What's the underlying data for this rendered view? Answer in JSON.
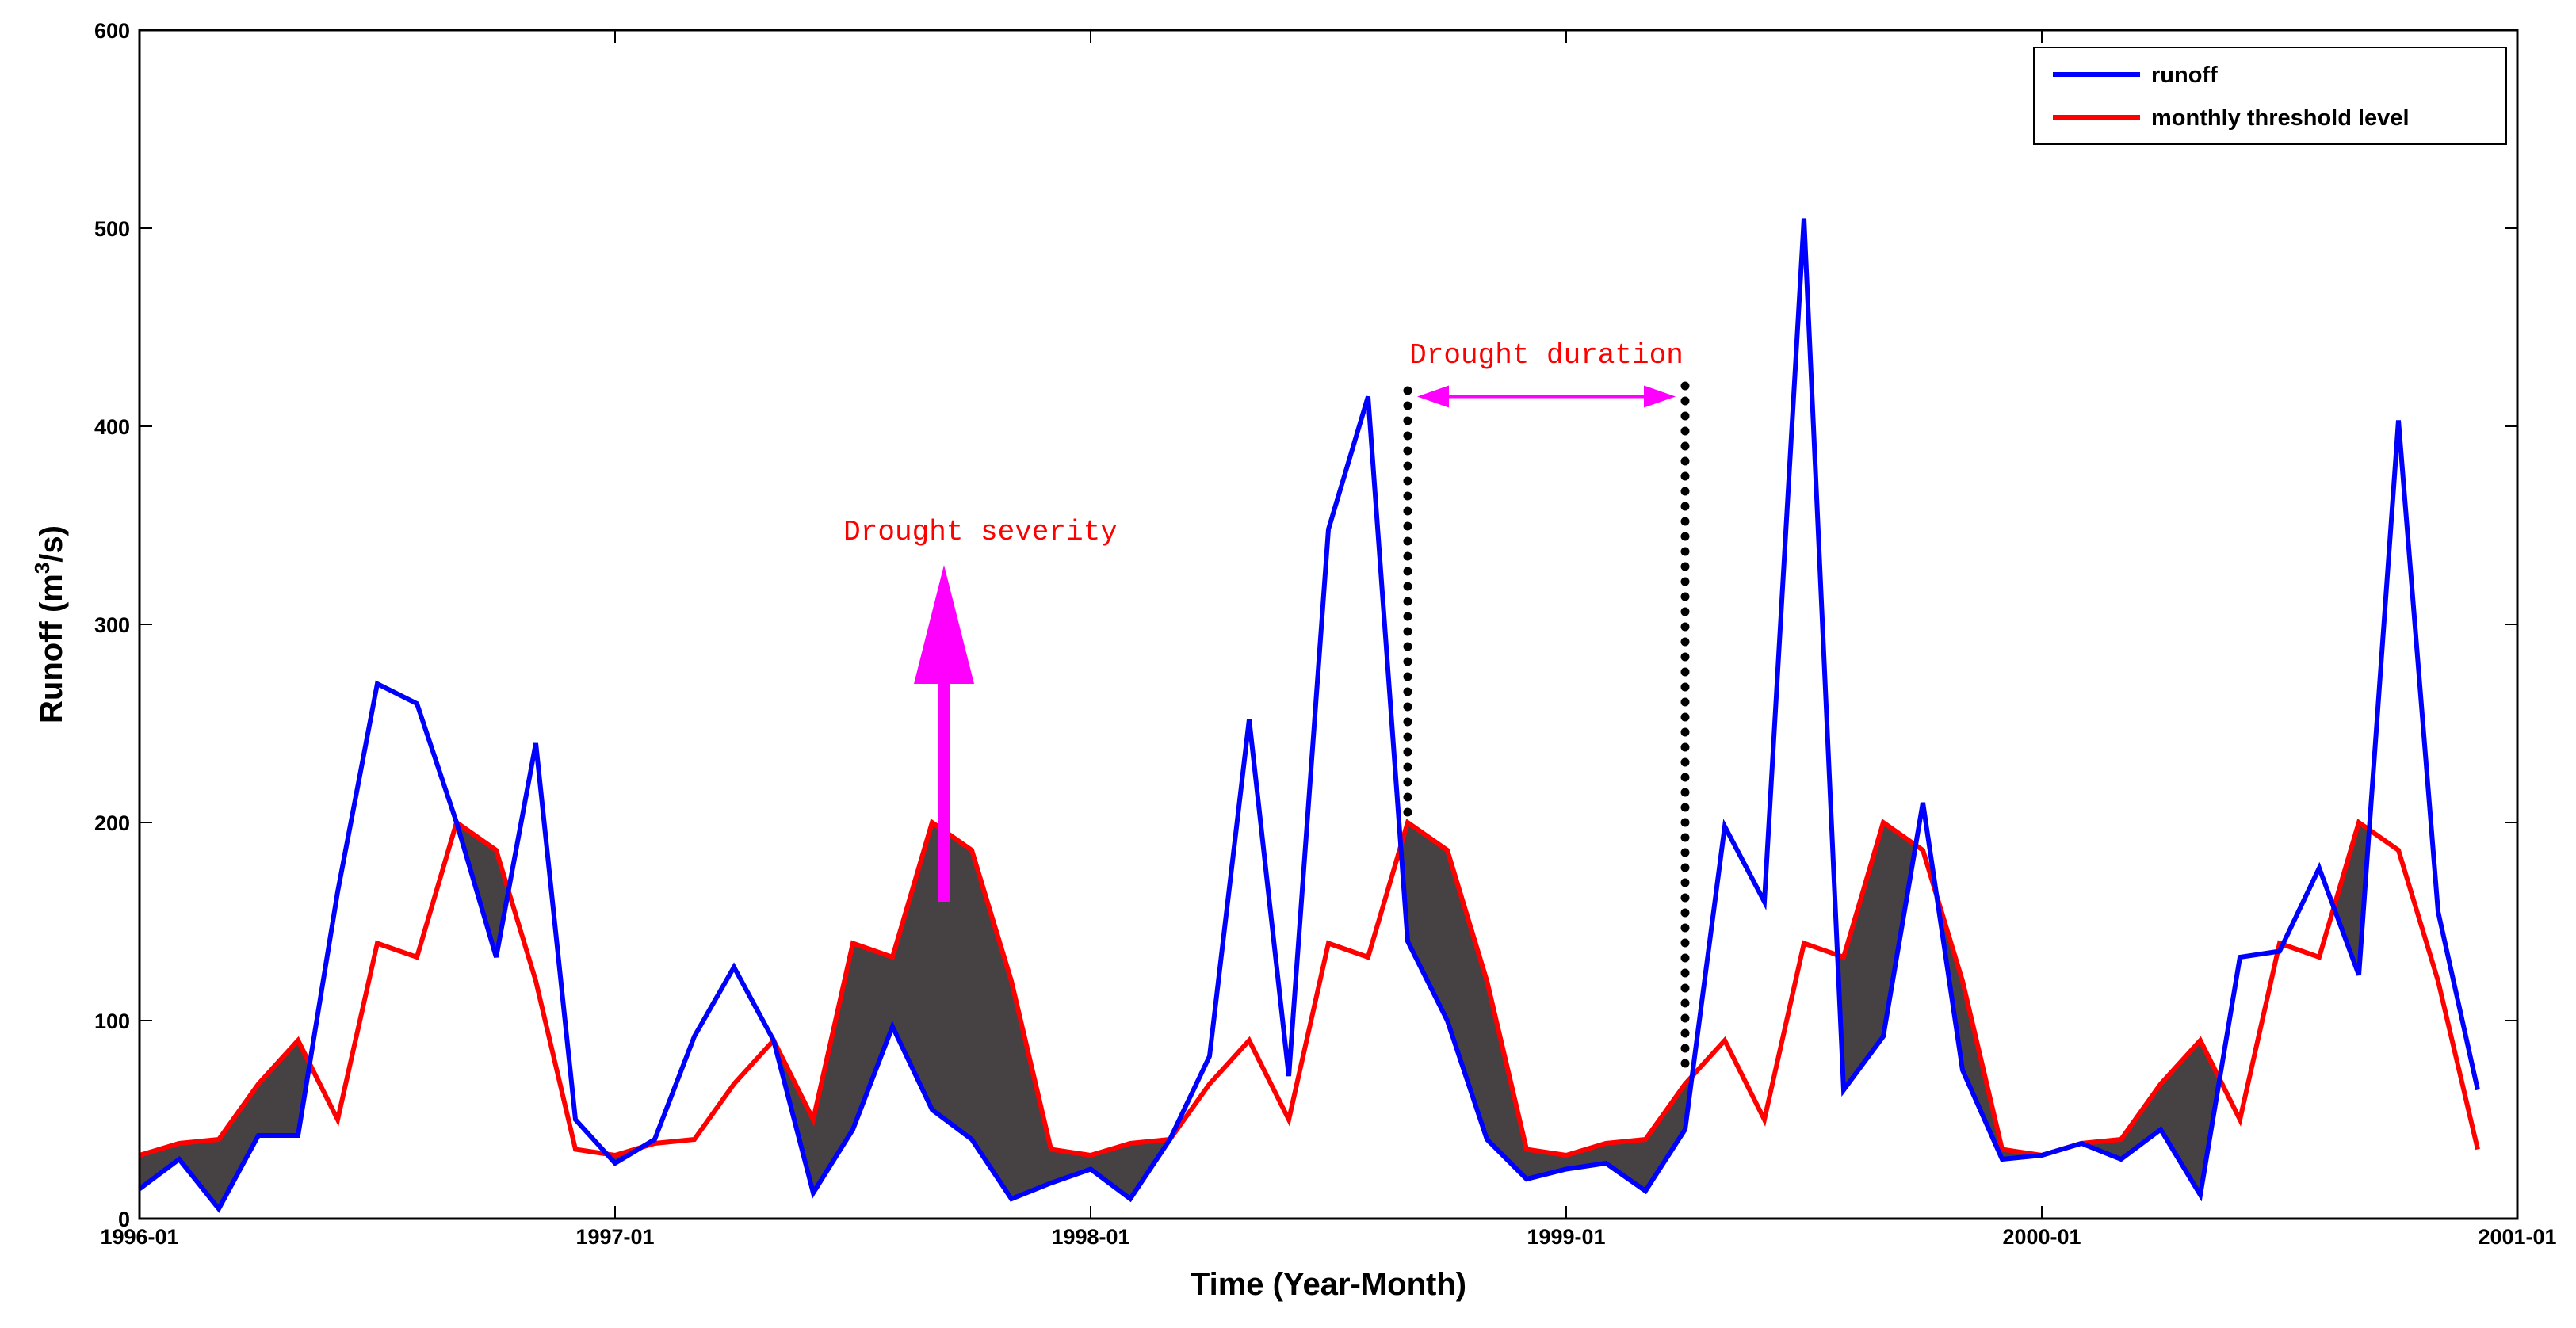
{
  "chart_data": {
    "type": "line",
    "title": "",
    "xlabel": "Time (Year-Month)",
    "ylabel_main": "Runoff (m",
    "ylabel_sup": "3",
    "ylabel_tail": "/s)",
    "ylim": [
      0,
      600
    ],
    "yticks": [
      "0",
      "100",
      "200",
      "300",
      "400",
      "500",
      "600"
    ],
    "xticks": [
      "1996-01",
      "1997-01",
      "1998-01",
      "1999-01",
      "2000-01",
      "2001-01"
    ],
    "xlim_months": [
      0,
      60
    ],
    "series": [
      {
        "name": "runoff",
        "color": "#0000ff",
        "values": [
          15,
          30,
          5,
          42,
          42,
          165,
          270,
          260,
          200,
          132,
          240,
          50,
          28,
          40,
          92,
          127,
          90,
          13,
          45,
          97,
          55,
          40,
          10,
          18,
          25,
          10,
          40,
          82,
          252,
          72,
          348,
          415,
          140,
          100,
          40,
          20,
          25,
          28,
          14,
          45,
          198,
          160,
          505,
          65,
          92,
          210,
          75,
          30,
          32,
          38,
          30,
          45,
          12,
          132,
          135,
          177,
          123,
          403,
          155,
          65
        ]
      },
      {
        "name": "monthly threshold level",
        "color": "#ff0000",
        "values": [
          32,
          38,
          40,
          68,
          90,
          50,
          139,
          132,
          200,
          186,
          120,
          35,
          32,
          38,
          40,
          68,
          90,
          50,
          139,
          132,
          200,
          186,
          120,
          35,
          32,
          38,
          40,
          68,
          90,
          50,
          139,
          132,
          200,
          186,
          120,
          35,
          32,
          38,
          40,
          68,
          90,
          50,
          139,
          132,
          200,
          186,
          120,
          35,
          32,
          38,
          40,
          68,
          90,
          50,
          139,
          132,
          200,
          186,
          120,
          35
        ]
      }
    ],
    "deficit_fill_color": "#464244",
    "legend": {
      "position": "top-right",
      "entries": [
        "runoff",
        "monthly threshold level"
      ]
    },
    "annotations": {
      "severity": {
        "text": "Drought severity",
        "arrow_x_month": 20.3,
        "arrow_from": 160,
        "arrow_to": 330,
        "label_y": 350,
        "color": "#ff00ff"
      },
      "duration": {
        "text": "Drought duration",
        "start_month": 32,
        "end_month": 39,
        "arrow_y": 415,
        "label_y": 432,
        "line_top": 418,
        "line_bottom_start": 200,
        "line_bottom_end": 72,
        "color": "#ff00ff"
      }
    }
  }
}
